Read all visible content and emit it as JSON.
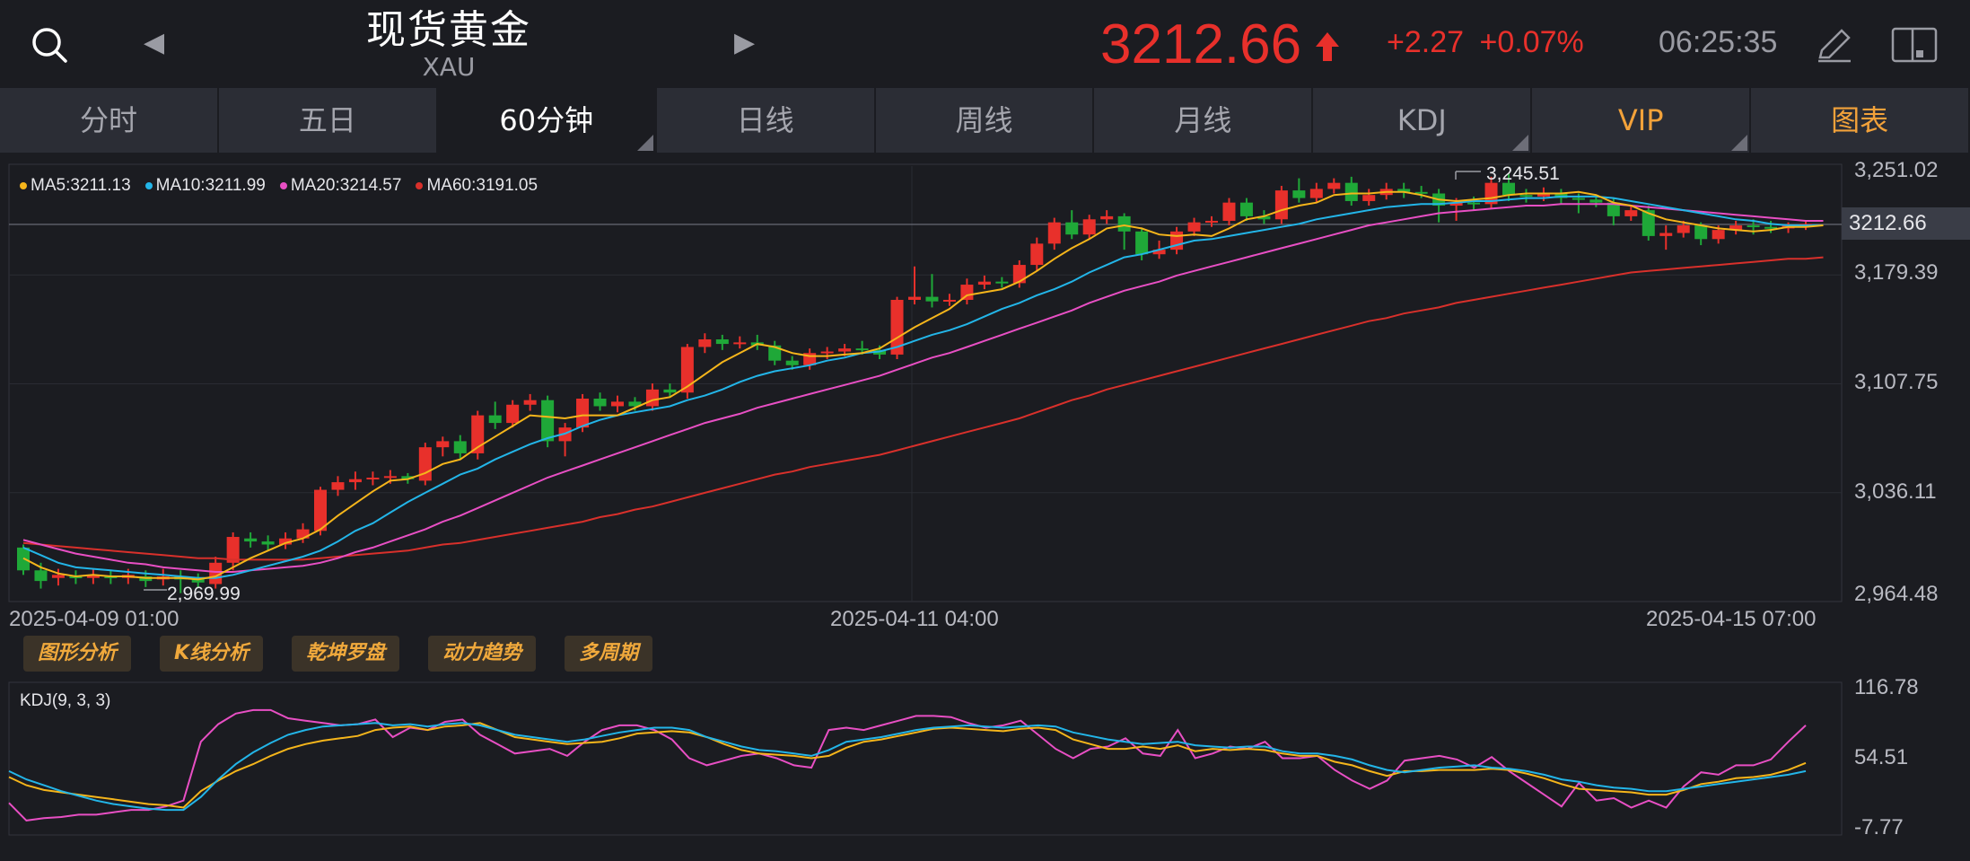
{
  "header": {
    "title": "现货黄金",
    "code": "XAU",
    "price": "3212.66",
    "change": "+2.27",
    "change_pct": "+0.07%",
    "time": "06:25:35",
    "prev_arrow": "◀",
    "next_arrow": "▶"
  },
  "tabs": [
    {
      "label": "分时"
    },
    {
      "label": "五日"
    },
    {
      "label": "60分钟",
      "active": true
    },
    {
      "label": "日线"
    },
    {
      "label": "周线"
    },
    {
      "label": "月线"
    },
    {
      "label": "KDJ"
    },
    {
      "label": "VIP"
    },
    {
      "label": "图表"
    }
  ],
  "colors": {
    "up": "#e8302b",
    "down": "#1fa838",
    "ma5": "#f5b51b",
    "ma10": "#23b5e8",
    "ma20": "#e84fc4",
    "ma60": "#d8302b",
    "accent": "#f3a23a"
  },
  "chart_data": {
    "type": "candlestick",
    "ma_legend": [
      {
        "name": "MA5",
        "value": "3211.13"
      },
      {
        "name": "MA10",
        "value": "3211.99"
      },
      {
        "name": "MA20",
        "value": "3214.57"
      },
      {
        "name": "MA60",
        "value": "3191.05"
      }
    ],
    "y_ticks": [
      "3,251.02",
      "3,179.39",
      "3,107.75",
      "3,036.11",
      "2,964.48"
    ],
    "x_ticks": [
      "2025-04-09 01:00",
      "2025-04-11 04:00",
      "2025-04-15 07:00"
    ],
    "ylim": [
      2964.48,
      3251.02
    ],
    "current_price": "3212.66",
    "high_label": "3,245.51",
    "low_label": "2,969.99",
    "candles": [
      [
        3000,
        2985,
        3002,
        2982
      ],
      [
        2985,
        2978,
        2990,
        2973
      ],
      [
        2980,
        2982,
        2986,
        2975
      ],
      [
        2981,
        2980,
        2985,
        2976
      ],
      [
        2980,
        2982,
        2986,
        2976
      ],
      [
        2981,
        2980,
        2985,
        2976
      ],
      [
        2980,
        2982,
        2986,
        2976
      ],
      [
        2981,
        2978,
        2985,
        2974
      ],
      [
        2979,
        2981,
        2986,
        2975
      ],
      [
        2981,
        2979,
        2985,
        2970
      ],
      [
        2980,
        2977,
        2983,
        2974
      ],
      [
        2976,
        2990,
        2994,
        2973
      ],
      [
        2990,
        3007,
        3010,
        2985
      ],
      [
        3006,
        3004,
        3010,
        3000
      ],
      [
        3004,
        3002,
        3008,
        2998
      ],
      [
        3002,
        3006,
        3010,
        2999
      ],
      [
        3006,
        3012,
        3016,
        3003
      ],
      [
        3011,
        3038,
        3040,
        3008
      ],
      [
        3038,
        3043,
        3047,
        3034
      ],
      [
        3043,
        3045,
        3050,
        3038
      ],
      [
        3045,
        3046,
        3050,
        3041
      ],
      [
        3046,
        3047,
        3051,
        3042
      ],
      [
        3047,
        3045,
        3049,
        3042
      ],
      [
        3044,
        3066,
        3069,
        3041
      ],
      [
        3066,
        3070,
        3073,
        3060
      ],
      [
        3070,
        3062,
        3074,
        3058
      ],
      [
        3062,
        3087,
        3090,
        3058
      ],
      [
        3087,
        3082,
        3096,
        3078
      ],
      [
        3082,
        3094,
        3097,
        3079
      ],
      [
        3094,
        3097,
        3101,
        3090
      ],
      [
        3097,
        3070,
        3100,
        3066
      ],
      [
        3070,
        3079,
        3082,
        3060
      ],
      [
        3079,
        3098,
        3101,
        3076
      ],
      [
        3098,
        3093,
        3102,
        3090
      ],
      [
        3093,
        3096,
        3100,
        3089
      ],
      [
        3096,
        3093,
        3099,
        3090
      ],
      [
        3093,
        3104,
        3108,
        3090
      ],
      [
        3104,
        3102,
        3108,
        3099
      ],
      [
        3102,
        3132,
        3134,
        3098
      ],
      [
        3132,
        3137,
        3141,
        3128
      ],
      [
        3137,
        3134,
        3140,
        3130
      ],
      [
        3134,
        3135,
        3139,
        3131
      ],
      [
        3135,
        3133,
        3140,
        3130
      ],
      [
        3133,
        3123,
        3136,
        3120
      ],
      [
        3123,
        3120,
        3126,
        3117
      ],
      [
        3120,
        3128,
        3131,
        3117
      ],
      [
        3128,
        3129,
        3132,
        3124
      ],
      [
        3129,
        3131,
        3134,
        3126
      ],
      [
        3131,
        3130,
        3136,
        3127
      ],
      [
        3130,
        3127,
        3133,
        3124
      ],
      [
        3127,
        3163,
        3165,
        3124
      ],
      [
        3163,
        3165,
        3185,
        3160
      ],
      [
        3165,
        3162,
        3180,
        3158
      ],
      [
        3162,
        3163,
        3167,
        3159
      ],
      [
        3163,
        3173,
        3177,
        3160
      ],
      [
        3173,
        3175,
        3179,
        3170
      ],
      [
        3175,
        3174,
        3178,
        3171
      ],
      [
        3174,
        3186,
        3189,
        3171
      ],
      [
        3186,
        3200,
        3204,
        3182
      ],
      [
        3200,
        3214,
        3217,
        3196
      ],
      [
        3214,
        3206,
        3222,
        3203
      ],
      [
        3206,
        3216,
        3219,
        3203
      ],
      [
        3216,
        3218,
        3222,
        3213
      ],
      [
        3218,
        3208,
        3220,
        3196
      ],
      [
        3208,
        3193,
        3210,
        3189
      ],
      [
        3193,
        3196,
        3202,
        3190
      ],
      [
        3196,
        3208,
        3211,
        3193
      ],
      [
        3208,
        3214,
        3217,
        3205
      ],
      [
        3214,
        3215,
        3218,
        3211
      ],
      [
        3215,
        3227,
        3230,
        3212
      ],
      [
        3227,
        3218,
        3230,
        3215
      ],
      [
        3218,
        3216,
        3222,
        3213
      ],
      [
        3216,
        3235,
        3238,
        3213
      ],
      [
        3235,
        3230,
        3243,
        3227
      ],
      [
        3230,
        3236,
        3240,
        3227
      ],
      [
        3236,
        3240,
        3243,
        3233
      ],
      [
        3240,
        3228,
        3244,
        3225
      ],
      [
        3228,
        3232,
        3236,
        3225
      ],
      [
        3232,
        3236,
        3240,
        3229
      ],
      [
        3236,
        3234,
        3240,
        3230
      ],
      [
        3234,
        3233,
        3238,
        3230
      ],
      [
        3233,
        3225,
        3236,
        3214
      ],
      [
        3225,
        3227,
        3230,
        3215
      ],
      [
        3227,
        3226,
        3231,
        3222
      ],
      [
        3226,
        3240,
        3244,
        3223
      ],
      [
        3240,
        3232,
        3246,
        3228
      ],
      [
        3232,
        3231,
        3236,
        3227
      ],
      [
        3231,
        3233,
        3237,
        3228
      ],
      [
        3233,
        3230,
        3236,
        3226
      ],
      [
        3230,
        3229,
        3233,
        3220
      ],
      [
        3229,
        3227,
        3232,
        3224
      ],
      [
        3227,
        3218,
        3230,
        3212
      ],
      [
        3218,
        3222,
        3225,
        3215
      ],
      [
        3222,
        3205,
        3225,
        3202
      ],
      [
        3205,
        3207,
        3212,
        3196
      ],
      [
        3207,
        3212,
        3215,
        3204
      ],
      [
        3212,
        3203,
        3214,
        3199
      ],
      [
        3203,
        3209,
        3212,
        3200
      ],
      [
        3209,
        3212,
        3215,
        3206
      ],
      [
        3212,
        3211,
        3216,
        3206
      ],
      [
        3211,
        3210,
        3215,
        3207
      ],
      [
        3210,
        3212,
        3214,
        3207
      ],
      [
        3212,
        3213,
        3215,
        3209
      ]
    ],
    "ma5": [
      2993,
      2987,
      2983,
      2981,
      2982,
      2981,
      2981,
      2980,
      2980,
      2980,
      2979,
      2981,
      2987,
      2993,
      2998,
      3003,
      3006,
      3012,
      3021,
      3029,
      3037,
      3044,
      3045,
      3049,
      3055,
      3058,
      3066,
      3073,
      3080,
      3087,
      3086,
      3085,
      3087,
      3087,
      3087,
      3092,
      3097,
      3099,
      3106,
      3114,
      3122,
      3128,
      3134,
      3132,
      3128,
      3126,
      3126,
      3127,
      3128,
      3131,
      3138,
      3145,
      3151,
      3157,
      3166,
      3168,
      3170,
      3175,
      3182,
      3190,
      3197,
      3203,
      3210,
      3212,
      3210,
      3206,
      3205,
      3206,
      3205,
      3210,
      3216,
      3218,
      3222,
      3225,
      3227,
      3232,
      3233,
      3233,
      3234,
      3234,
      3232,
      3229,
      3228,
      3229,
      3230,
      3232,
      3233,
      3233,
      3233,
      3234,
      3232,
      3227,
      3225,
      3220,
      3216,
      3214,
      3212,
      3210,
      3209,
      3208,
      3209,
      3211,
      3211,
      3212
    ],
    "ma10": [
      3000,
      2995,
      2990,
      2987,
      2986,
      2985,
      2984,
      2983,
      2982,
      2981,
      2980,
      2980,
      2982,
      2985,
      2988,
      2991,
      2994,
      2998,
      3004,
      3011,
      3016,
      3023,
      3030,
      3036,
      3042,
      3048,
      3052,
      3058,
      3063,
      3068,
      3072,
      3075,
      3080,
      3084,
      3087,
      3089,
      3091,
      3093,
      3097,
      3100,
      3104,
      3109,
      3113,
      3116,
      3118,
      3120,
      3123,
      3125,
      3128,
      3129,
      3132,
      3136,
      3140,
      3143,
      3147,
      3152,
      3157,
      3161,
      3166,
      3170,
      3175,
      3181,
      3186,
      3191,
      3193,
      3196,
      3199,
      3202,
      3203,
      3205,
      3207,
      3209,
      3211,
      3213,
      3216,
      3218,
      3220,
      3222,
      3224,
      3225,
      3226,
      3226,
      3227,
      3228,
      3228,
      3229,
      3230,
      3230,
      3231,
      3231,
      3231,
      3230,
      3228,
      3226,
      3224,
      3222,
      3220,
      3218,
      3216,
      3215,
      3213,
      3212,
      3212,
      3212
    ],
    "ma20": [
      3005,
      3002,
      2999,
      2996,
      2994,
      2992,
      2990,
      2989,
      2987,
      2986,
      2985,
      2984,
      2984,
      2985,
      2986,
      2987,
      2988,
      2990,
      2993,
      2997,
      3000,
      3004,
      3008,
      3012,
      3017,
      3021,
      3026,
      3031,
      3036,
      3041,
      3046,
      3050,
      3054,
      3058,
      3062,
      3066,
      3070,
      3074,
      3078,
      3082,
      3085,
      3088,
      3092,
      3095,
      3098,
      3101,
      3104,
      3107,
      3110,
      3113,
      3117,
      3121,
      3125,
      3128,
      3132,
      3136,
      3140,
      3144,
      3148,
      3152,
      3156,
      3161,
      3165,
      3169,
      3172,
      3175,
      3179,
      3182,
      3185,
      3188,
      3191,
      3194,
      3197,
      3200,
      3203,
      3206,
      3209,
      3212,
      3214,
      3216,
      3218,
      3220,
      3221,
      3222,
      3223,
      3224,
      3225,
      3225,
      3226,
      3226,
      3226,
      3226,
      3225,
      3224,
      3223,
      3222,
      3221,
      3220,
      3219,
      3218,
      3217,
      3216,
      3215,
      3215
    ],
    "ma60": [
      3003,
      3002,
      3001,
      3000,
      2999,
      2998,
      2997,
      2996,
      2995,
      2994,
      2993,
      2993,
      2992,
      2992,
      2992,
      2992,
      2992,
      2993,
      2994,
      2995,
      2996,
      2997,
      2998,
      3000,
      3002,
      3003,
      3005,
      3007,
      3009,
      3011,
      3013,
      3015,
      3017,
      3020,
      3022,
      3025,
      3027,
      3030,
      3033,
      3036,
      3039,
      3042,
      3045,
      3048,
      3050,
      3053,
      3055,
      3057,
      3059,
      3061,
      3064,
      3067,
      3070,
      3073,
      3076,
      3079,
      3082,
      3085,
      3089,
      3093,
      3097,
      3100,
      3104,
      3107,
      3110,
      3113,
      3116,
      3119,
      3122,
      3125,
      3128,
      3131,
      3134,
      3137,
      3140,
      3143,
      3146,
      3149,
      3151,
      3154,
      3156,
      3158,
      3161,
      3163,
      3165,
      3167,
      3169,
      3171,
      3173,
      3175,
      3177,
      3179,
      3181,
      3182,
      3183,
      3184,
      3185,
      3186,
      3187,
      3188,
      3189,
      3190,
      3190,
      3191
    ]
  },
  "buttons": [
    "图形分析",
    "K线分析",
    "乾坤罗盘",
    "动力趋势",
    "多周期"
  ],
  "kdj": {
    "label": "KDJ(9, 3, 3)",
    "y_ticks": [
      "116.78",
      "54.51",
      "-7.77"
    ],
    "ylim": [
      -7.77,
      116.78
    ],
    "k": [
      45,
      38,
      33,
      28,
      24,
      20,
      17,
      15,
      13,
      12,
      12,
      23,
      38,
      51,
      61,
      69,
      76,
      80,
      83,
      84,
      85,
      86,
      84,
      85,
      83,
      85,
      86,
      84,
      80,
      76,
      74,
      72,
      70,
      72,
      75,
      78,
      80,
      82,
      82,
      80,
      74,
      70,
      66,
      63,
      62,
      60,
      58,
      63,
      70,
      72,
      74,
      77,
      80,
      82,
      83,
      84,
      83,
      82,
      83,
      84,
      83,
      78,
      75,
      72,
      70,
      68,
      69,
      70,
      67,
      66,
      65,
      66,
      66,
      62,
      60,
      60,
      58,
      55,
      50,
      46,
      44,
      46,
      48,
      49,
      50,
      48,
      47,
      45,
      42,
      38,
      36,
      33,
      31,
      30,
      28,
      28,
      30,
      32,
      34,
      36,
      38,
      40,
      42,
      45
    ],
    "d": [
      40,
      33,
      29,
      27,
      25,
      23,
      21,
      19,
      17,
      16,
      14,
      28,
      37,
      45,
      51,
      58,
      64,
      68,
      71,
      73,
      75,
      80,
      82,
      83,
      80,
      83,
      84,
      86,
      80,
      74,
      72,
      70,
      68,
      69,
      70,
      73,
      77,
      78,
      79,
      78,
      74,
      68,
      63,
      60,
      59,
      58,
      56,
      58,
      65,
      70,
      72,
      75,
      78,
      81,
      82,
      81,
      80,
      79,
      81,
      82,
      80,
      72,
      68,
      64,
      64,
      66,
      64,
      67,
      62,
      64,
      63,
      64,
      63,
      60,
      58,
      58,
      53,
      50,
      45,
      41,
      45,
      45,
      46,
      46,
      46,
      47,
      46,
      43,
      39,
      34,
      30,
      29,
      28,
      27,
      25,
      25,
      29,
      34,
      36,
      39,
      40,
      42,
      46,
      52
    ],
    "j": [
      18,
      3,
      5,
      6,
      8,
      8,
      10,
      12,
      12,
      15,
      20,
      70,
      85,
      94,
      97,
      97,
      90,
      88,
      86,
      84,
      85,
      89,
      74,
      82,
      80,
      87,
      89,
      76,
      68,
      60,
      62,
      64,
      58,
      70,
      80,
      84,
      84,
      80,
      72,
      56,
      50,
      54,
      58,
      60,
      56,
      50,
      48,
      80,
      82,
      80,
      84,
      88,
      92,
      92,
      91,
      86,
      82,
      84,
      88,
      76,
      64,
      56,
      64,
      66,
      73,
      60,
      58,
      80,
      56,
      60,
      66,
      64,
      70,
      56,
      56,
      58,
      46,
      37,
      30,
      37,
      54,
      56,
      58,
      55,
      48,
      57,
      45,
      35,
      25,
      15,
      35,
      20,
      22,
      14,
      20,
      14,
      32,
      44,
      42,
      50,
      50,
      55,
      70,
      84
    ]
  }
}
